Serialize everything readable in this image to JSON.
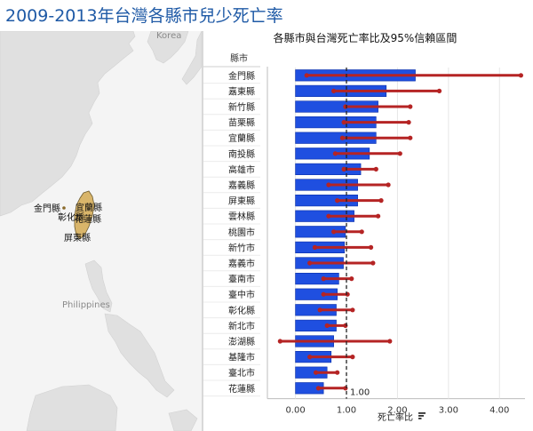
{
  "page": {
    "title": "2009-2013年台灣各縣市兒少死亡率"
  },
  "map": {
    "country_labels": [
      "Korea",
      "Philippines"
    ],
    "county_labels": [
      "金門縣",
      "宜蘭縣",
      "彰化縣",
      "花蓮縣",
      "屏東縣"
    ]
  },
  "chart_data": {
    "type": "bar",
    "title": "各縣市與台灣死亡率比及95%信賴區間",
    "category_header": "縣市",
    "xlabel": "死亡率比",
    "categories": [
      "金門縣",
      "嘉東縣",
      "新竹縣",
      "苗栗縣",
      "宜蘭縣",
      "南投縣",
      "高雄市",
      "嘉義縣",
      "屏東縣",
      "雲林縣",
      "桃園市",
      "新竹市",
      "嘉義市",
      "臺南市",
      "臺中市",
      "彰化縣",
      "新北市",
      "澎湖縣",
      "基隆市",
      "臺北市",
      "花蓮縣"
    ],
    "values": [
      2.35,
      1.78,
      1.62,
      1.58,
      1.58,
      1.45,
      1.28,
      1.22,
      1.22,
      1.15,
      0.98,
      0.96,
      0.94,
      0.85,
      0.82,
      0.8,
      0.8,
      0.75,
      0.7,
      0.62,
      0.55
    ],
    "ci_low": [
      0.22,
      0.75,
      0.98,
      0.95,
      0.92,
      0.78,
      0.95,
      0.65,
      0.82,
      0.65,
      0.75,
      0.38,
      0.28,
      0.55,
      0.55,
      0.48,
      0.62,
      -0.3,
      0.28,
      0.4,
      0.45
    ],
    "ci_high": [
      4.42,
      2.82,
      2.25,
      2.22,
      2.25,
      2.05,
      1.58,
      1.82,
      1.68,
      1.62,
      1.3,
      1.48,
      1.52,
      1.1,
      1.02,
      1.12,
      0.98,
      1.85,
      1.12,
      0.82,
      0.98
    ],
    "reference_line": 1.0,
    "reference_label": "1.00",
    "xlim": [
      -0.55,
      4.5
    ],
    "xticks": [
      0,
      1,
      2,
      3,
      4
    ],
    "xtick_labels": [
      "0.00",
      "1.00",
      "2.00",
      "3.00",
      "4.00"
    ],
    "colors": {
      "bar": "#1f4fe0",
      "ci": "#b52424",
      "reference": "#222222"
    }
  }
}
